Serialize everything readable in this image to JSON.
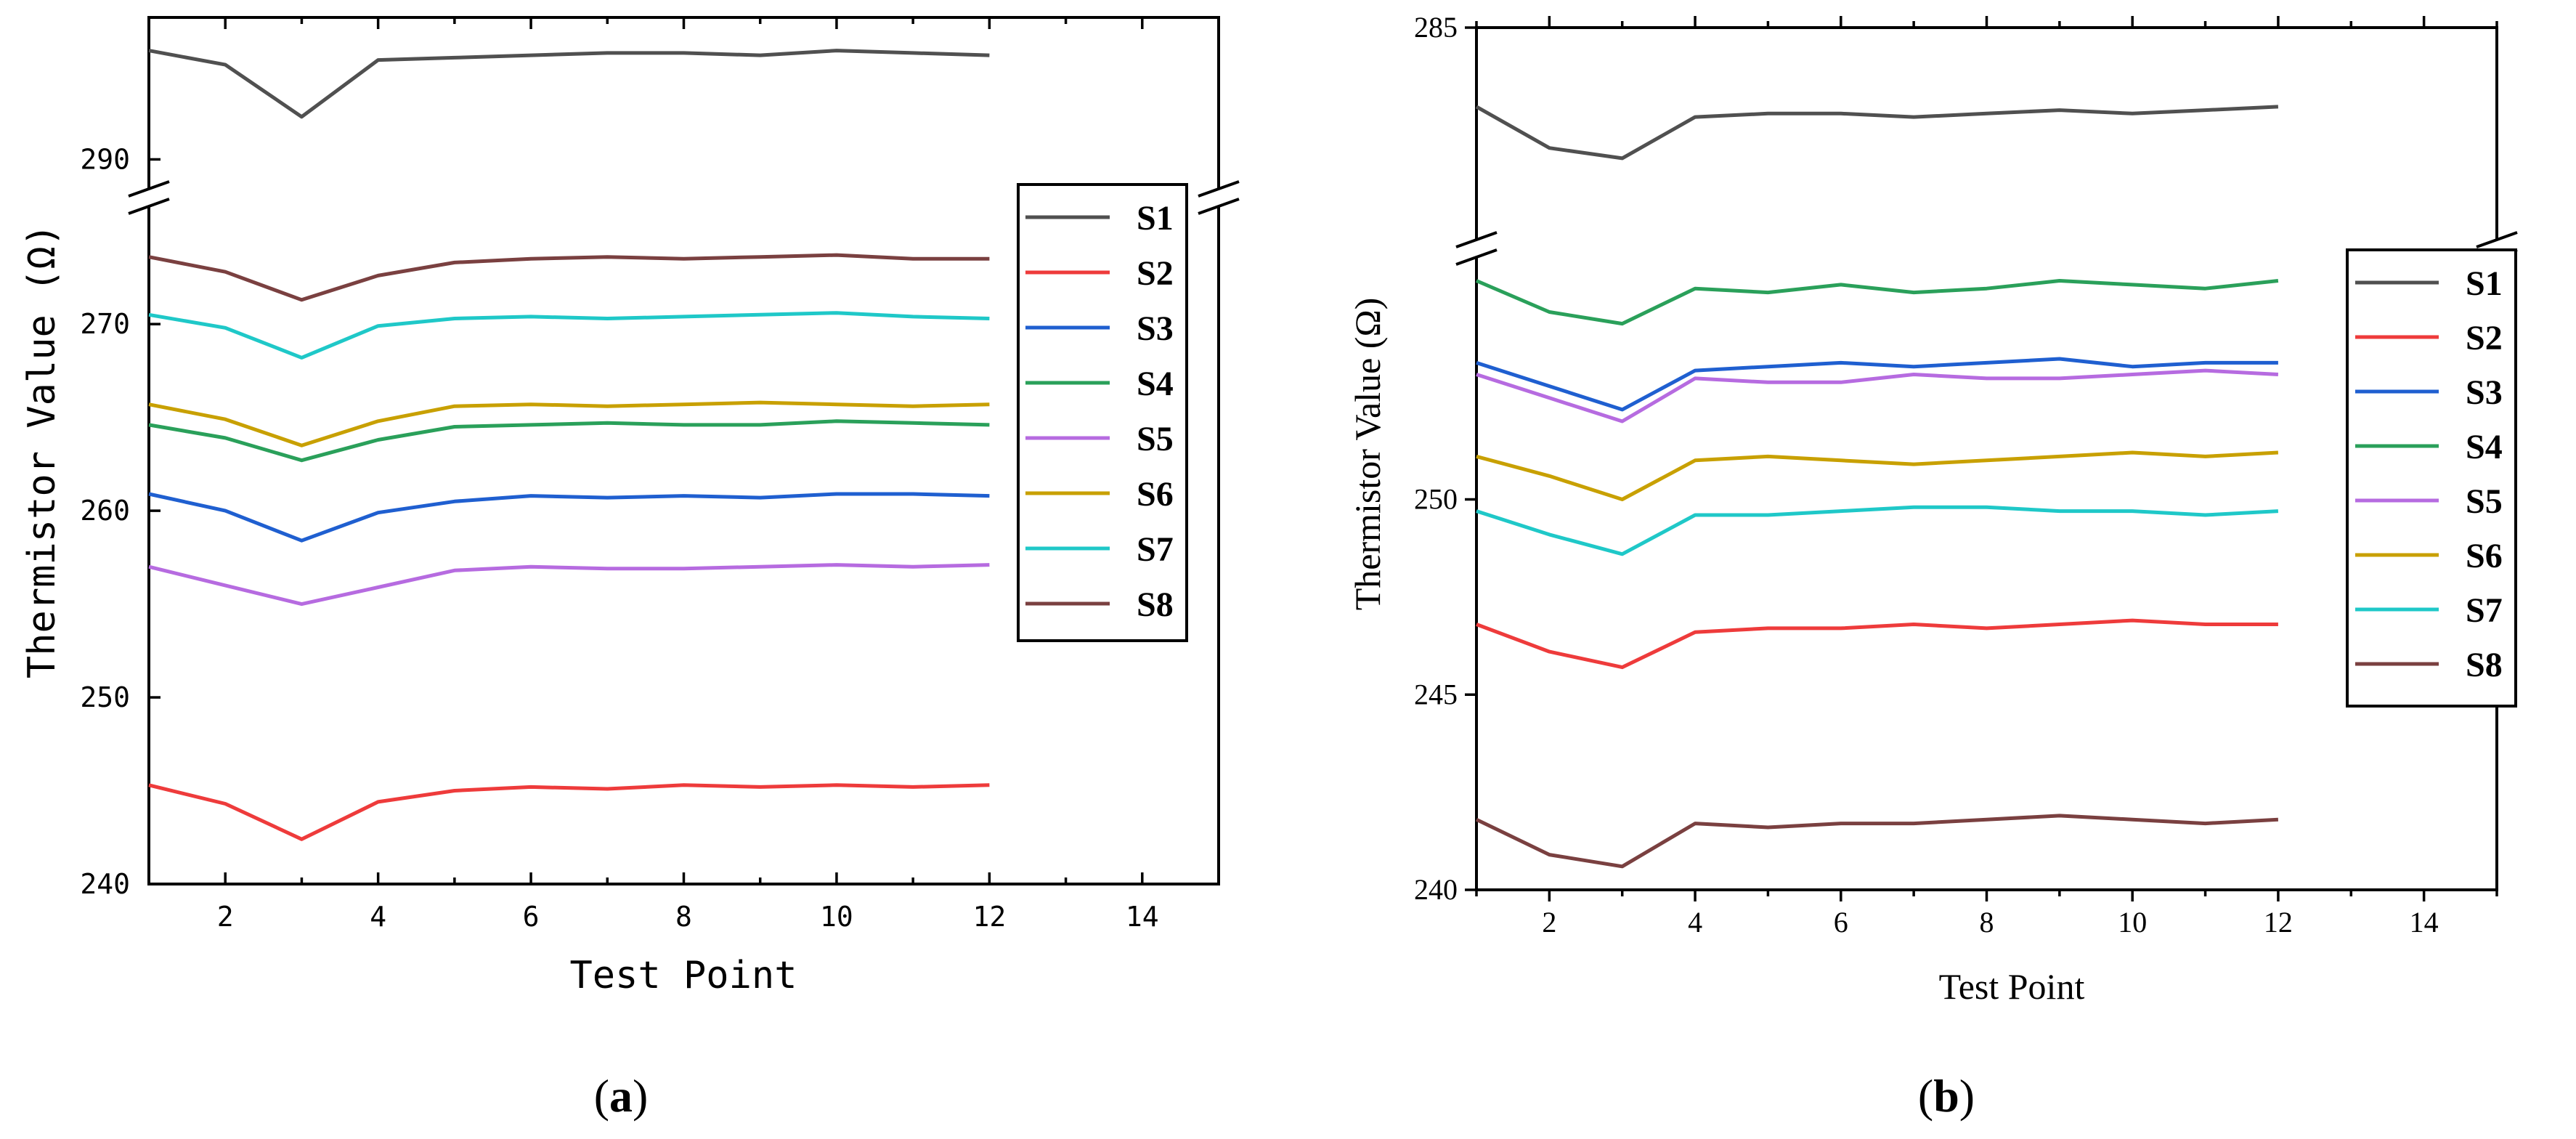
{
  "chart_data": [
    {
      "type": "line",
      "panel": "a",
      "caption": "(a)",
      "caption_letter": "a",
      "xlabel": "Test Point",
      "ylabel": "Thermistor Value (Ω)",
      "xlim": [
        1,
        15
      ],
      "xticks": [
        2,
        4,
        6,
        8,
        10,
        12,
        14
      ],
      "axis_break": {
        "lower_max": 276,
        "upper_min": 289
      },
      "ylim_lower": [
        240,
        276
      ],
      "ylim_upper": [
        289,
        296
      ],
      "yticks": [
        240,
        250,
        260,
        270,
        290
      ],
      "legend_position": "right",
      "x": [
        1,
        2,
        3,
        4,
        5,
        6,
        7,
        8,
        9,
        10,
        11,
        12
      ],
      "series": [
        {
          "name": "S1",
          "color": "#505050",
          "values": [
            294.6,
            294.0,
            291.8,
            294.2,
            294.3,
            294.4,
            294.5,
            294.5,
            294.4,
            294.6,
            294.5,
            294.4
          ]
        },
        {
          "name": "S2",
          "color": "#ee3b3b",
          "values": [
            245.3,
            244.3,
            242.4,
            244.4,
            245.0,
            245.2,
            245.1,
            245.3,
            245.2,
            245.3,
            245.2,
            245.3
          ]
        },
        {
          "name": "S3",
          "color": "#1f5fd0",
          "values": [
            260.9,
            260.0,
            258.4,
            259.9,
            260.5,
            260.8,
            260.7,
            260.8,
            260.7,
            260.9,
            260.9,
            260.8
          ]
        },
        {
          "name": "S4",
          "color": "#2aa05a",
          "values": [
            264.6,
            263.9,
            262.7,
            263.8,
            264.5,
            264.6,
            264.7,
            264.6,
            264.6,
            264.8,
            264.7,
            264.6
          ]
        },
        {
          "name": "S5",
          "color": "#b66be0",
          "values": [
            257.0,
            256.0,
            255.0,
            255.9,
            256.8,
            257.0,
            256.9,
            256.9,
            257.0,
            257.1,
            257.0,
            257.1
          ]
        },
        {
          "name": "S6",
          "color": "#c8a000",
          "values": [
            265.7,
            264.9,
            263.5,
            264.8,
            265.6,
            265.7,
            265.6,
            265.7,
            265.8,
            265.7,
            265.6,
            265.7
          ]
        },
        {
          "name": "S7",
          "color": "#1fc8c8",
          "values": [
            270.5,
            269.8,
            268.2,
            269.9,
            270.3,
            270.4,
            270.3,
            270.4,
            270.5,
            270.6,
            270.4,
            270.3
          ]
        },
        {
          "name": "S8",
          "color": "#7a4040",
          "values": [
            273.6,
            272.8,
            271.3,
            272.6,
            273.3,
            273.5,
            273.6,
            273.5,
            273.6,
            273.7,
            273.5,
            273.5
          ]
        }
      ]
    },
    {
      "type": "line",
      "panel": "b",
      "caption": "(b)",
      "caption_letter": "b",
      "xlabel": "Test Point",
      "ylabel": "Thermistor Value (Ω)",
      "xlim": [
        1,
        15
      ],
      "xticks": [
        2,
        4,
        6,
        8,
        10,
        12,
        14
      ],
      "axis_break": {
        "lower_max": 256,
        "upper_min": 279
      },
      "ylim_lower": [
        240,
        256
      ],
      "ylim_upper": [
        279,
        285
      ],
      "yticks": [
        240,
        245,
        250,
        285
      ],
      "legend_position": "right",
      "x": [
        1,
        2,
        3,
        4,
        5,
        6,
        7,
        8,
        9,
        10,
        11,
        12
      ],
      "series": [
        {
          "name": "S1",
          "color": "#505050",
          "values": [
            282.7,
            281.5,
            281.2,
            282.4,
            282.5,
            282.5,
            282.4,
            282.5,
            282.6,
            282.5,
            282.6,
            282.7
          ]
        },
        {
          "name": "S2",
          "color": "#ee3b3b",
          "values": [
            246.8,
            246.1,
            245.7,
            246.6,
            246.7,
            246.7,
            246.8,
            246.7,
            246.8,
            246.9,
            246.8,
            246.8
          ]
        },
        {
          "name": "S3",
          "color": "#1f5fd0",
          "values": [
            253.5,
            252.9,
            252.3,
            253.3,
            253.4,
            253.5,
            253.4,
            253.5,
            253.6,
            253.4,
            253.5,
            253.5
          ]
        },
        {
          "name": "S4",
          "color": "#2aa05a",
          "values": [
            255.6,
            254.8,
            254.5,
            255.4,
            255.3,
            255.5,
            255.3,
            255.4,
            255.6,
            255.5,
            255.4,
            255.6
          ]
        },
        {
          "name": "S5",
          "color": "#b66be0",
          "values": [
            253.2,
            252.6,
            252.0,
            253.1,
            253.0,
            253.0,
            253.2,
            253.1,
            253.1,
            253.2,
            253.3,
            253.2
          ]
        },
        {
          "name": "S6",
          "color": "#c8a000",
          "values": [
            251.1,
            250.6,
            250.0,
            251.0,
            251.1,
            251.0,
            250.9,
            251.0,
            251.1,
            251.2,
            251.1,
            251.2
          ]
        },
        {
          "name": "S7",
          "color": "#1fc8c8",
          "values": [
            249.7,
            249.1,
            248.6,
            249.6,
            249.6,
            249.7,
            249.8,
            249.8,
            249.7,
            249.7,
            249.6,
            249.7
          ]
        },
        {
          "name": "S8",
          "color": "#7a4040",
          "values": [
            241.8,
            240.9,
            240.6,
            241.7,
            241.6,
            241.7,
            241.7,
            241.8,
            241.9,
            241.8,
            241.7,
            241.8
          ]
        }
      ]
    }
  ]
}
